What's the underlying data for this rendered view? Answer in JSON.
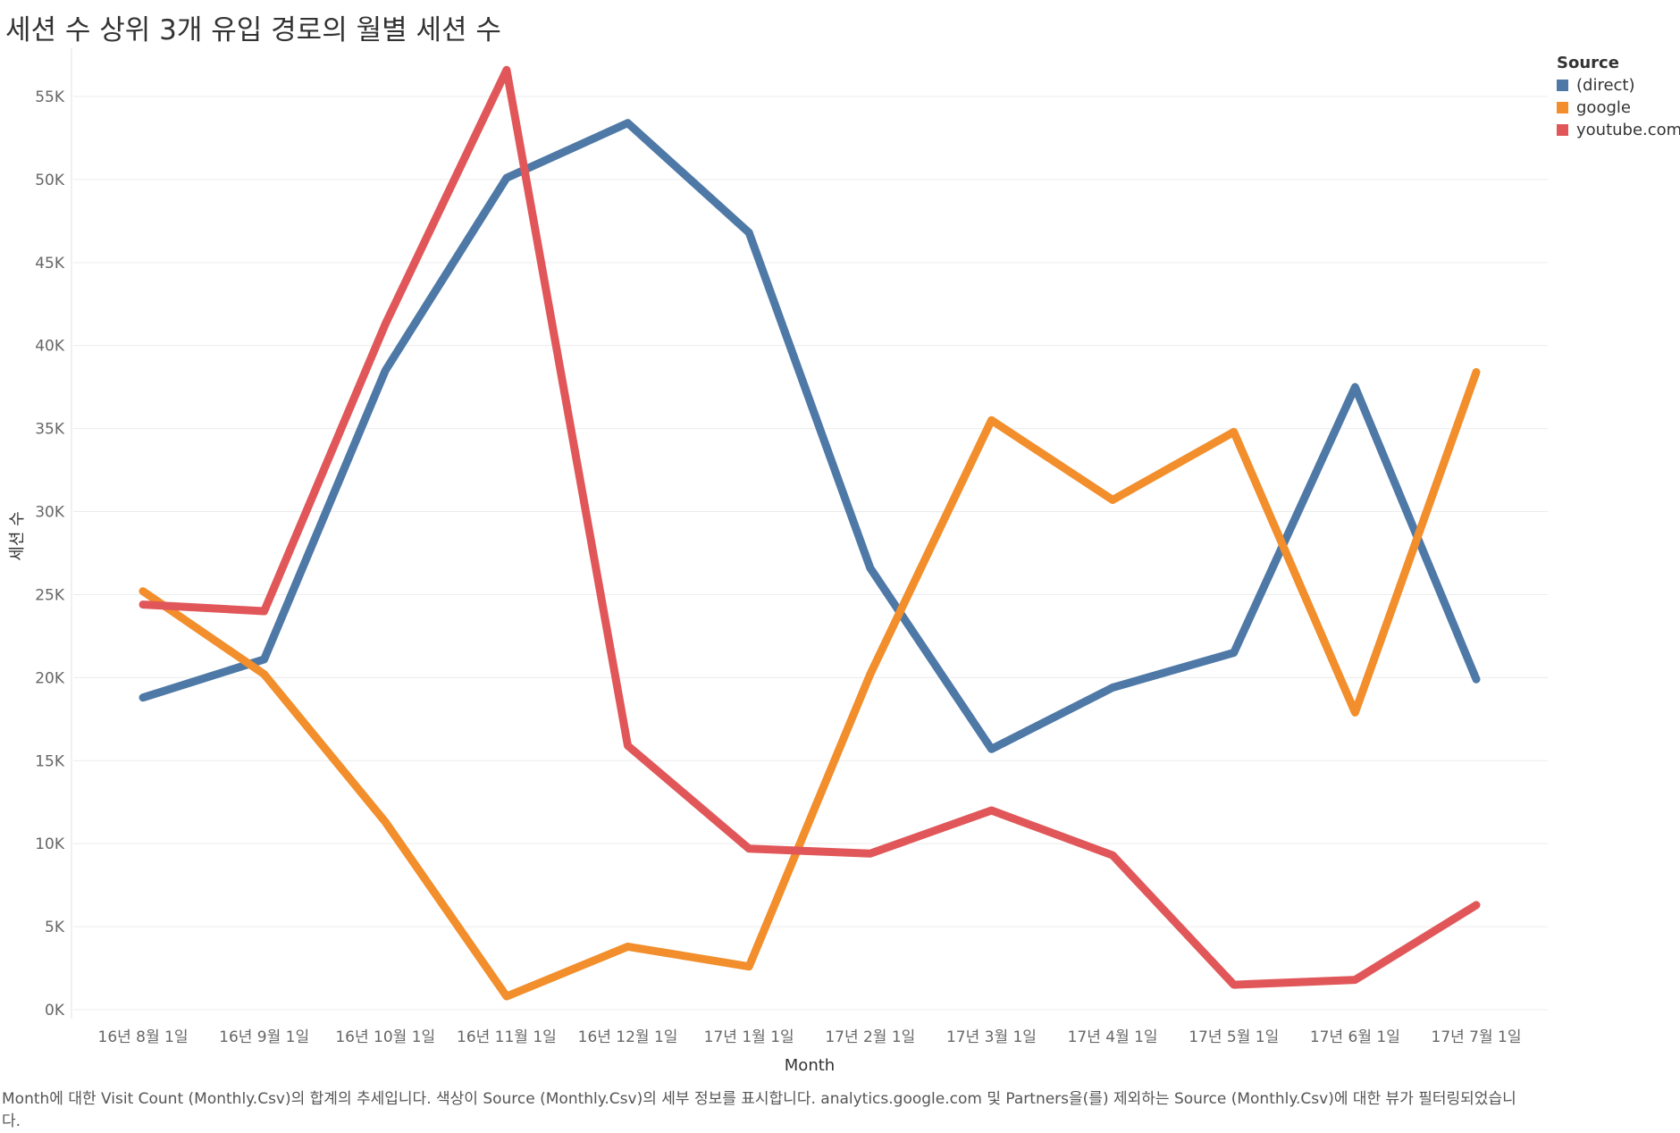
{
  "chart_data": {
    "type": "line",
    "title": "세션 수 상위 3개 유입 경로의 월별 세션 수",
    "xlabel": "Month",
    "ylabel": "세션 수",
    "categories": [
      "16년 8월 1일",
      "16년 9월 1일",
      "16년 10월 1일",
      "16년 11월 1일",
      "16년 12월 1일",
      "17년 1월 1일",
      "17년 2월 1일",
      "17년 3월 1일",
      "17년 4월 1일",
      "17년 5월 1일",
      "17년 6월 1일",
      "17년 7월 1일"
    ],
    "ylim": [
      0,
      60000
    ],
    "yticks": [
      0,
      5000,
      10000,
      15000,
      20000,
      25000,
      30000,
      35000,
      40000,
      45000,
      50000,
      55000
    ],
    "ytick_labels": [
      "0K",
      "5K",
      "10K",
      "15K",
      "20K",
      "25K",
      "30K",
      "35K",
      "40K",
      "45K",
      "50K",
      "55K"
    ],
    "grid": true,
    "legend_title": "Source",
    "legend_position": "top-right",
    "series": [
      {
        "name": "(direct)",
        "color": "#4e79a7",
        "values": [
          18800,
          21100,
          38500,
          50100,
          53400,
          46800,
          26600,
          15700,
          19400,
          21500,
          37500,
          19900
        ]
      },
      {
        "name": "google",
        "color": "#f28e2b",
        "values": [
          25200,
          20200,
          11300,
          800,
          3800,
          2600,
          20200,
          35500,
          30700,
          34800,
          17900,
          38400
        ]
      },
      {
        "name": "youtube.com",
        "color": "#e15759",
        "values": [
          24400,
          24000,
          41300,
          56600,
          15900,
          9700,
          9400,
          12000,
          9300,
          1500,
          1800,
          6300
        ]
      }
    ]
  },
  "caption": "Month에 대한 Visit Count (Monthly.Csv)의 합계의 추세입니다. 색상이 Source (Monthly.Csv)의 세부 정보를 표시합니다. analytics.google.com 및 Partners을(를) 제외하는 Source (Monthly.Csv)에 대한 뷰가 필터링되었습니다."
}
